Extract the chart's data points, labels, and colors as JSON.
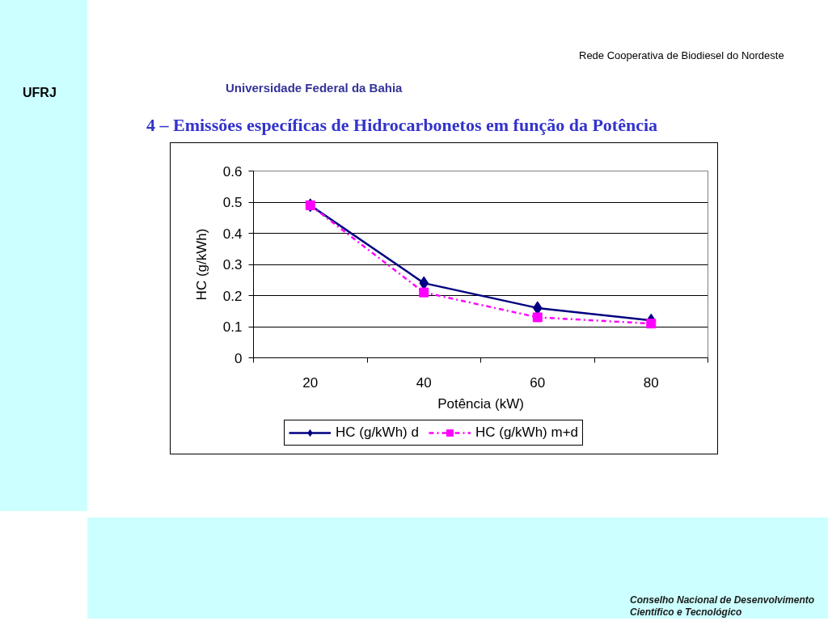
{
  "chart_data": {
    "type": "line",
    "title": "4 – Emissões específicas de Hidrocarbonetos em função da Potência",
    "xlabel": "Potência (kW)",
    "ylabel": "HC (g/kWh)",
    "categories": [
      "20",
      "40",
      "60",
      "80"
    ],
    "series": [
      {
        "name": "HC (g/kWh) d",
        "color": "#000080",
        "values": [
          0.49,
          0.24,
          0.16,
          0.12
        ],
        "marker": "diamond",
        "line_style": "solid"
      },
      {
        "name": "HC (g/kWh) m+d",
        "color": "#ff00ff",
        "values": [
          0.49,
          0.21,
          0.13,
          0.11
        ],
        "marker": "square",
        "line_style": "dashdot"
      }
    ],
    "ylim": [
      0,
      0.6
    ],
    "yticks": [
      0,
      0.1,
      0.2,
      0.3,
      0.4,
      0.5,
      0.6
    ],
    "grid": "y",
    "legend": "bottom",
    "annotations": [
      "UFRJ",
      "Universidade Federal da Bahia",
      "Rede Cooperativa de Biodiesel do Nordeste",
      "Conselho Nacional de Desenvolvimento Científico e Tecnológico"
    ]
  }
}
